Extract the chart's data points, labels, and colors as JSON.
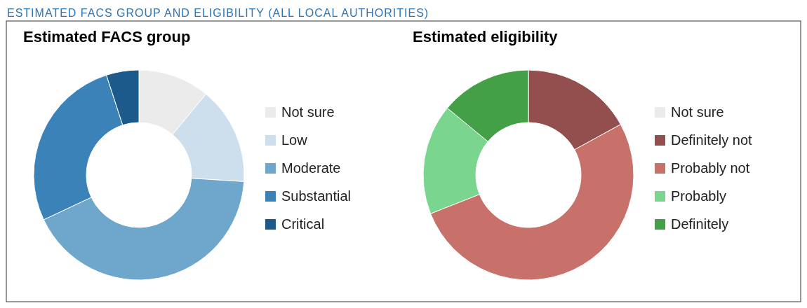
{
  "chart_data": [
    {
      "type": "donut",
      "title": "Estimated FACS group",
      "annotations": [
        "ESTIMATED FACS GROUP AND ELIGIBILITY (ALL LOCAL AUTHORITIES)"
      ],
      "categories": [
        "Not sure",
        "Low",
        "Moderate",
        "Substantial",
        "Critical"
      ],
      "values": [
        11,
        15,
        42,
        27,
        5
      ],
      "colors": [
        "#ebebeb",
        "#cddfec",
        "#6ea6cc",
        "#3a82b8",
        "#1b5a8a"
      ],
      "legend": "right"
    },
    {
      "type": "donut",
      "title": "Estimated eligibility",
      "categories": [
        "Not sure",
        "Definitely not",
        "Probably not",
        "Probably",
        "Definitely"
      ],
      "values": [
        0,
        17,
        52,
        17,
        14
      ],
      "colors": [
        "#ebebeb",
        "#934e4e",
        "#c8716a",
        "#7ad68e",
        "#43a047"
      ],
      "legend": "right"
    }
  ]
}
